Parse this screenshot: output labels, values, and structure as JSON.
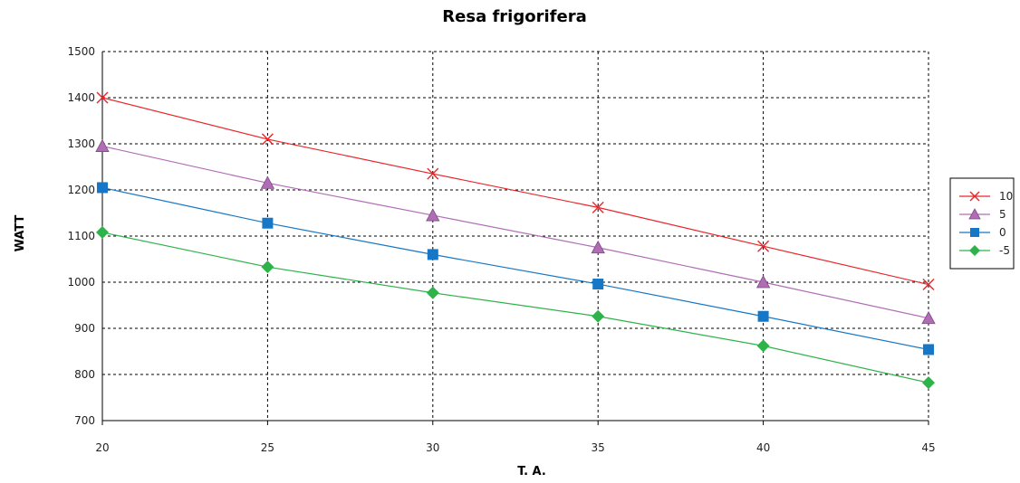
{
  "chart_data": {
    "type": "line",
    "title": "Resa frigorifera",
    "xlabel": "T. A.",
    "ylabel": "WATT",
    "x": [
      20,
      25,
      30,
      35,
      40,
      45
    ],
    "x_ticks": [
      "20",
      "25",
      "30",
      "35",
      "40",
      "45"
    ],
    "xlim": [
      20,
      45
    ],
    "ylim": [
      700,
      1500
    ],
    "y_ticks": [
      "700",
      "800",
      "900",
      "1000",
      "1100",
      "1200",
      "1300",
      "1400",
      "1500"
    ],
    "grid": true,
    "legend_position": "right",
    "series": [
      {
        "name": "10",
        "values": [
          1400,
          1310,
          1235,
          1162,
          1078,
          995
        ],
        "color": "#e8262b",
        "marker": "x"
      },
      {
        "name": "5",
        "values": [
          1295,
          1215,
          1145,
          1075,
          1000,
          922
        ],
        "color": "#b06cb5",
        "marker": "triangle"
      },
      {
        "name": "0",
        "values": [
          1205,
          1128,
          1060,
          996,
          926,
          854
        ],
        "color": "#1677c6",
        "marker": "square"
      },
      {
        "name": "-5",
        "values": [
          1108,
          1033,
          977,
          926,
          862,
          782
        ],
        "color": "#2db34a",
        "marker": "diamond"
      }
    ]
  }
}
